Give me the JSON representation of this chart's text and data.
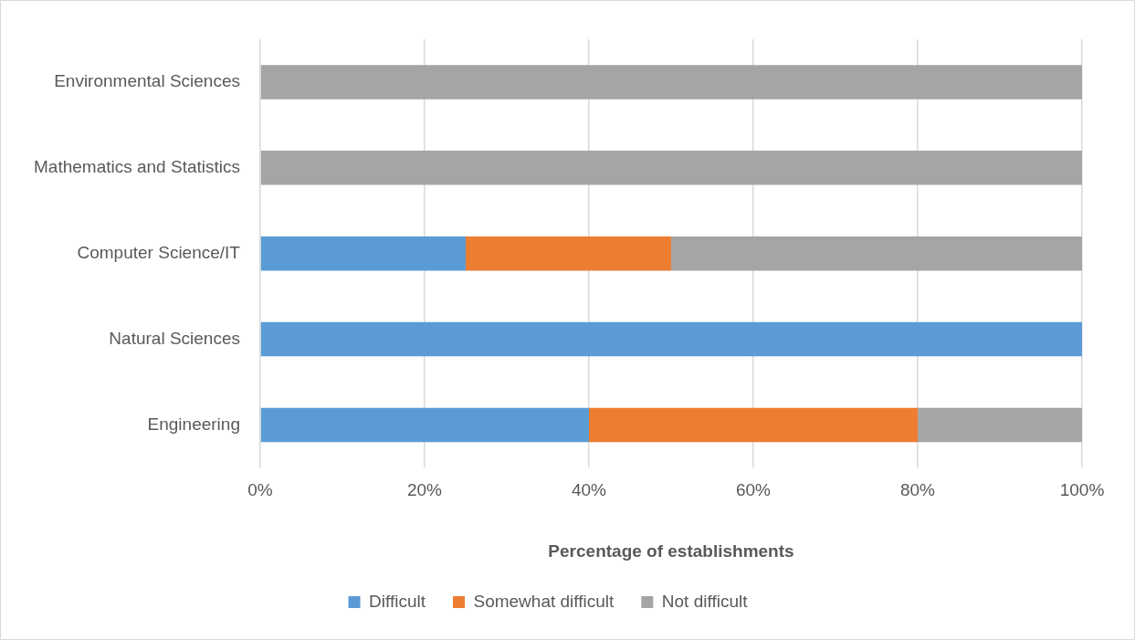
{
  "chart_data": {
    "type": "bar",
    "orientation": "horizontal",
    "stacked": true,
    "categories": [
      "Environmental Sciences",
      "Mathematics and Statistics",
      "Computer Science/IT",
      "Natural Sciences",
      "Engineering"
    ],
    "series": [
      {
        "name": "Difficult",
        "color": "#5b9bd5",
        "values": [
          0,
          0,
          25,
          100,
          40
        ]
      },
      {
        "name": "Somewhat difficult",
        "color": "#ed7d31",
        "values": [
          0,
          0,
          25,
          0,
          40
        ]
      },
      {
        "name": "Not difficult",
        "color": "#a5a5a5",
        "values": [
          100,
          100,
          50,
          0,
          20
        ]
      }
    ],
    "xlim": [
      0,
      100
    ],
    "xticks": [
      {
        "value": 0,
        "label": "0%"
      },
      {
        "value": 20,
        "label": "20%"
      },
      {
        "value": 40,
        "label": "40%"
      },
      {
        "value": 60,
        "label": "60%"
      },
      {
        "value": 80,
        "label": "80%"
      },
      {
        "value": 100,
        "label": "100%"
      }
    ],
    "xlabel": "Percentage of establishments",
    "grid": "x",
    "legend": "bottom"
  }
}
